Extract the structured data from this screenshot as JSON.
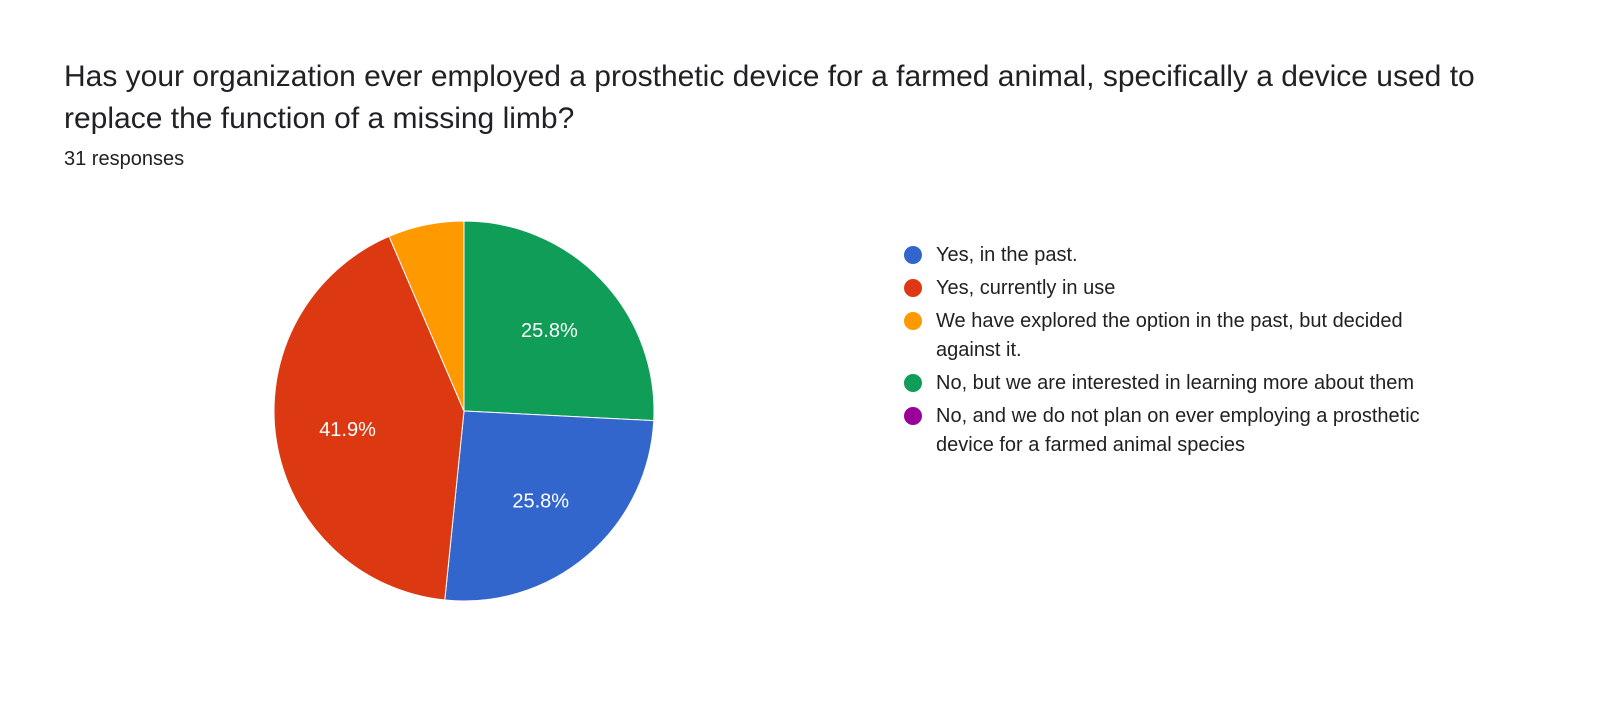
{
  "title": "Has your organization ever employed a prosthetic device for a farmed animal, specifically a device used to replace the function of a missing limb?",
  "subtitle": "31 responses",
  "chart": {
    "type": "pie",
    "background_color": "#ffffff",
    "text_color": "#202124",
    "title_fontsize": 30,
    "legend_fontsize": 20,
    "slice_label_fontsize": 20,
    "slice_label_color": "#ffffff",
    "radius": 190,
    "start_angle_deg": -90,
    "slices": [
      {
        "label": "No, but we are interested in learning more about them",
        "value": 25.806,
        "display": "25.8%",
        "color": "#0f9d58",
        "show_label": true
      },
      {
        "label": "Yes, in the past.",
        "value": 25.806,
        "display": "25.8%",
        "color": "#3366cc",
        "show_label": true
      },
      {
        "label": "Yes, currently in use",
        "value": 41.935,
        "display": "41.9%",
        "color": "#dc3912",
        "show_label": true
      },
      {
        "label": "We have explored the option in the past, but decided against it.",
        "value": 6.452,
        "display": "6.5%",
        "color": "#ff9900",
        "show_label": false
      }
    ],
    "legend_order": [
      {
        "label": "Yes, in the past.",
        "color": "#3366cc"
      },
      {
        "label": "Yes, currently in use",
        "color": "#dc3912"
      },
      {
        "label": "We have explored the option in the past, but decided against it.",
        "color": "#ff9900"
      },
      {
        "label": "No, but we are interested in learning more about them",
        "color": "#0f9d58"
      },
      {
        "label": "No, and we do not plan on ever employing a prosthetic device for a farmed animal species",
        "color": "#990099"
      }
    ]
  }
}
